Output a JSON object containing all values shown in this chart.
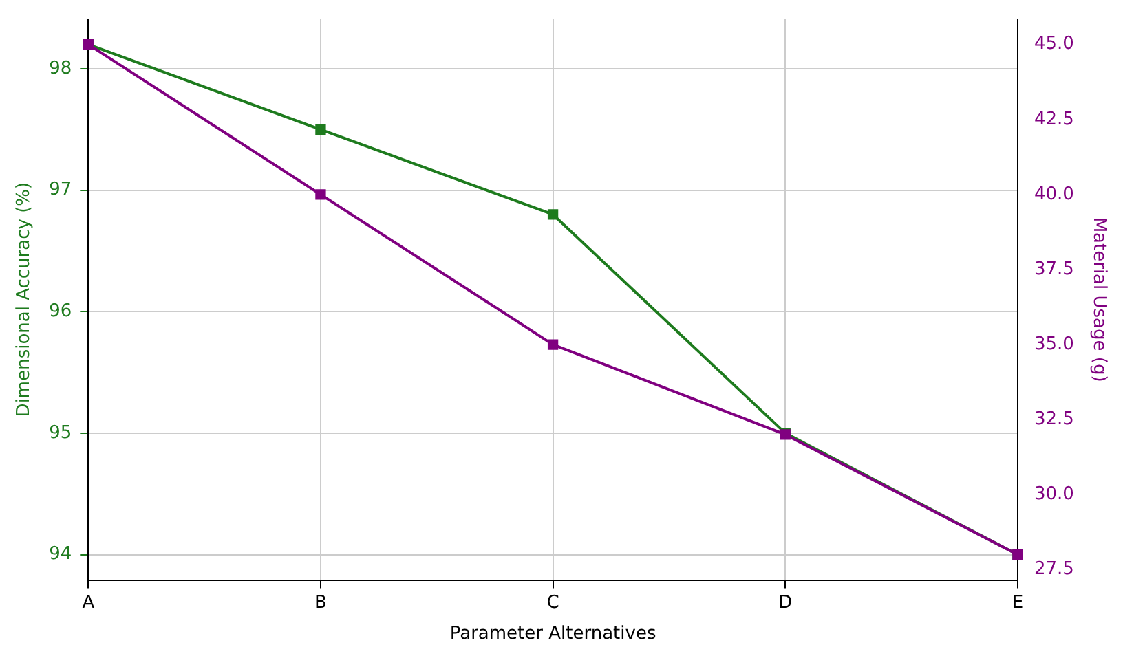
{
  "chart_data": {
    "type": "line",
    "xlabel": "Parameter Alternatives",
    "ylabel": "Dimensional Accuracy (%)",
    "y2label": "Material Usage (g)",
    "categories": [
      "A",
      "B",
      "C",
      "D",
      "E"
    ],
    "series": [
      {
        "color": "#1e7b1e",
        "values": [
          98.2,
          97.5,
          96.8,
          95.0,
          94.0
        ]
      },
      {
        "color": "#800080",
        "values": [
          45,
          40,
          35,
          32,
          28
        ],
        "axis": "y2"
      }
    ],
    "ylim": [
      93.79,
      98.41
    ],
    "yticks": [
      94,
      95,
      96,
      97,
      98
    ],
    "y2lim": [
      27.15,
      45.85
    ],
    "y2ticks": [
      {
        "value": 27.5,
        "label": "27.5"
      },
      {
        "value": 30,
        "label": "30.0"
      },
      {
        "value": 32.5,
        "label": "32.5"
      },
      {
        "value": 35,
        "label": "35.0"
      },
      {
        "value": 37.5,
        "label": "37.5"
      },
      {
        "value": 40,
        "label": "40.0"
      },
      {
        "value": 42.5,
        "label": "42.5"
      },
      {
        "value": 45,
        "label": "45.0"
      }
    ],
    "grid": true,
    "legend": false,
    "marker": "square",
    "line_style": "solid"
  }
}
